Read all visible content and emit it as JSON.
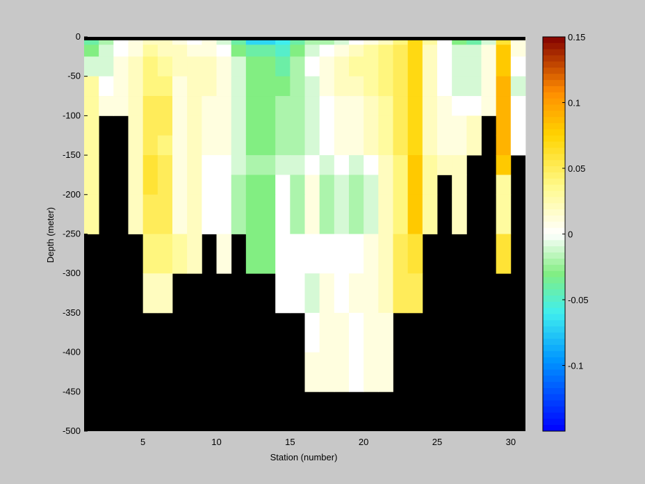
{
  "chart_data": {
    "type": "heatmap",
    "title": "",
    "xlabel": "Station (number)",
    "ylabel": "Depth (meter)",
    "xlim": [
      1,
      31
    ],
    "ylim": [
      -500,
      0
    ],
    "x_ticks": [
      5,
      10,
      15,
      20,
      25,
      30
    ],
    "y_ticks": [
      0,
      -50,
      -100,
      -150,
      -200,
      -250,
      -300,
      -350,
      -400,
      -450,
      -500
    ],
    "colorbar": {
      "range": [
        -0.15,
        0.15
      ],
      "ticks": [
        0.15,
        0.1,
        0.05,
        0,
        -0.05,
        -0.1
      ],
      "tick_labels": [
        "0.15",
        "0.1",
        "0.05",
        "0",
        "-0.05",
        "-0.1"
      ],
      "colormap": "jet-white-center"
    },
    "depth_bins": [
      0,
      -10,
      -25,
      -50,
      -75,
      -100,
      -125,
      -150,
      -175,
      -200,
      -250,
      -300,
      -350,
      -400
    ],
    "stations": [
      1,
      2,
      3,
      4,
      5,
      6,
      7,
      8,
      9,
      10,
      11,
      12,
      13,
      14,
      15,
      16,
      17,
      18,
      19,
      20,
      21,
      22,
      23,
      24,
      25,
      26,
      27,
      28,
      29,
      30
    ],
    "values": [
      [
        -0.04,
        -0.02,
        0.0,
        0.01,
        0.02,
        0.02,
        0.01,
        0.0,
        0.01,
        -0.01,
        -0.04,
        -0.07,
        -0.07,
        -0.06,
        -0.04,
        -0.02,
        -0.02,
        -0.01,
        0.0,
        0.01,
        0.02,
        0.04,
        0.07,
        0.03,
        0.0,
        -0.03,
        -0.04,
        -0.01,
        0.06,
        0.01
      ],
      [
        -0.03,
        -0.01,
        0.0,
        0.01,
        0.03,
        0.02,
        0.02,
        0.01,
        0.01,
        0.0,
        -0.03,
        -0.04,
        -0.04,
        -0.05,
        -0.03,
        -0.01,
        0.0,
        0.01,
        0.02,
        0.03,
        0.04,
        0.05,
        0.07,
        0.02,
        0.0,
        -0.01,
        -0.01,
        0.01,
        0.08,
        0.01
      ],
      [
        -0.01,
        -0.01,
        0.01,
        0.02,
        0.04,
        0.03,
        0.02,
        0.02,
        0.02,
        0.01,
        -0.01,
        -0.03,
        -0.03,
        -0.04,
        -0.02,
        0.0,
        0.01,
        0.02,
        0.03,
        0.03,
        0.04,
        0.05,
        0.07,
        0.02,
        0.0,
        -0.01,
        -0.01,
        0.01,
        0.08,
        0.0
      ],
      [
        0.03,
        0.0,
        0.01,
        0.02,
        0.04,
        0.04,
        0.01,
        0.02,
        0.02,
        0.01,
        -0.01,
        -0.03,
        -0.03,
        -0.03,
        -0.02,
        -0.01,
        0.01,
        0.02,
        0.02,
        0.03,
        0.04,
        0.05,
        0.07,
        0.02,
        0.0,
        -0.01,
        -0.01,
        0.01,
        0.09,
        -0.01
      ],
      [
        0.03,
        0.01,
        0.01,
        0.02,
        0.05,
        0.05,
        0.01,
        0.02,
        0.01,
        0.01,
        -0.01,
        -0.03,
        -0.03,
        -0.02,
        -0.02,
        -0.01,
        0.0,
        0.01,
        0.01,
        0.02,
        0.03,
        0.05,
        0.07,
        0.02,
        0.01,
        0.0,
        0.0,
        0.01,
        0.09,
        0.0
      ],
      [
        0.03,
        null,
        null,
        0.02,
        0.05,
        0.05,
        0.01,
        0.02,
        0.01,
        0.01,
        -0.01,
        -0.03,
        -0.03,
        -0.02,
        -0.02,
        -0.01,
        0.0,
        0.01,
        0.01,
        0.02,
        0.03,
        0.05,
        0.07,
        0.02,
        0.01,
        0.01,
        0.02,
        null,
        0.09,
        0.0
      ],
      [
        0.03,
        null,
        null,
        0.02,
        0.05,
        0.04,
        0.01,
        0.02,
        0.01,
        0.01,
        -0.01,
        -0.03,
        -0.03,
        -0.02,
        -0.02,
        -0.01,
        0.0,
        0.01,
        0.01,
        0.02,
        0.03,
        0.05,
        0.07,
        0.02,
        0.01,
        0.01,
        0.02,
        null,
        0.09,
        0.0
      ],
      [
        0.03,
        null,
        null,
        0.02,
        0.06,
        0.05,
        0.01,
        0.02,
        0.0,
        0.0,
        -0.01,
        -0.02,
        -0.02,
        -0.01,
        -0.01,
        0.0,
        -0.01,
        0.0,
        -0.01,
        0.0,
        0.02,
        0.04,
        0.08,
        0.03,
        0.02,
        0.02,
        null,
        null,
        0.08,
        null
      ],
      [
        0.03,
        null,
        null,
        0.02,
        0.06,
        0.05,
        0.01,
        0.02,
        0.0,
        0.0,
        -0.02,
        -0.03,
        -0.03,
        0.0,
        -0.02,
        0.01,
        -0.02,
        -0.01,
        -0.02,
        -0.01,
        0.02,
        0.04,
        0.08,
        0.03,
        null,
        0.02,
        null,
        null,
        0.03,
        null
      ],
      [
        0.03,
        null,
        null,
        0.02,
        0.05,
        0.05,
        0.01,
        0.02,
        0.0,
        0.0,
        -0.02,
        -0.03,
        -0.03,
        0.0,
        -0.02,
        0.01,
        -0.02,
        -0.01,
        -0.02,
        -0.01,
        0.02,
        0.04,
        0.08,
        0.03,
        null,
        0.02,
        null,
        null,
        0.03,
        null
      ],
      [
        null,
        null,
        null,
        null,
        0.04,
        0.04,
        0.03,
        0.02,
        null,
        0.01,
        null,
        -0.03,
        -0.03,
        0.0,
        0.0,
        0.0,
        0.0,
        0.0,
        0.0,
        0.01,
        0.02,
        0.05,
        0.06,
        null,
        null,
        null,
        null,
        null,
        0.06,
        null
      ],
      [
        null,
        null,
        null,
        null,
        0.02,
        0.02,
        null,
        null,
        null,
        null,
        null,
        null,
        null,
        0.0,
        0.0,
        -0.01,
        0.01,
        0.0,
        0.01,
        0.01,
        0.02,
        0.05,
        0.05,
        null,
        null,
        null,
        null,
        null,
        null,
        null
      ],
      [
        null,
        null,
        null,
        null,
        null,
        null,
        null,
        null,
        null,
        null,
        null,
        null,
        null,
        null,
        null,
        0.0,
        0.01,
        0.01,
        0.0,
        0.01,
        0.01,
        null,
        null,
        null,
        null,
        null,
        null,
        null,
        null,
        null
      ],
      [
        null,
        null,
        null,
        null,
        null,
        null,
        null,
        null,
        null,
        null,
        null,
        null,
        null,
        null,
        null,
        0.01,
        0.01,
        0.01,
        0.0,
        0.01,
        0.01,
        null,
        null,
        null,
        null,
        null,
        null,
        null,
        null,
        null
      ]
    ]
  }
}
